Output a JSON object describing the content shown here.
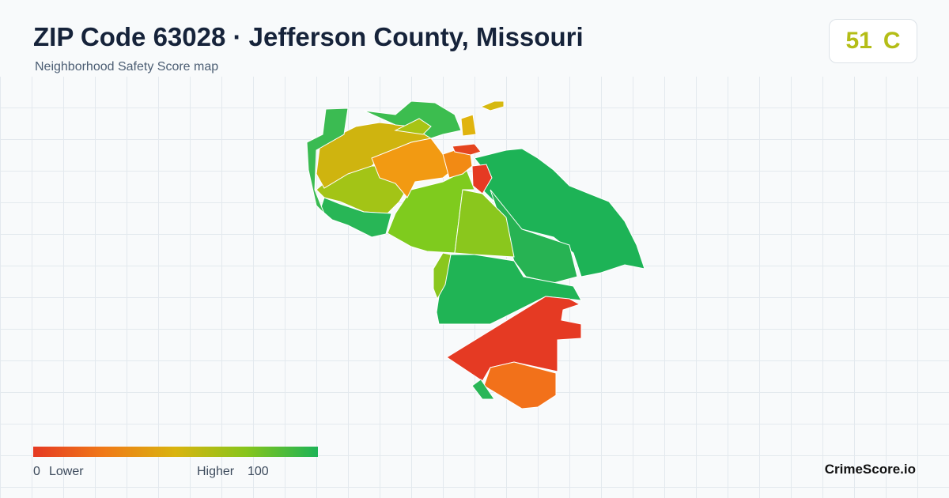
{
  "header": {
    "title": "ZIP Code 63028 · Jefferson County, Missouri",
    "subtitle": "Neighborhood Safety Score map",
    "score": "51",
    "grade": "C"
  },
  "legend": {
    "min": "0",
    "min_label": "Lower",
    "max_label": "Higher",
    "max": "100"
  },
  "footer": {
    "brand": "CrimeScore.io"
  }
}
